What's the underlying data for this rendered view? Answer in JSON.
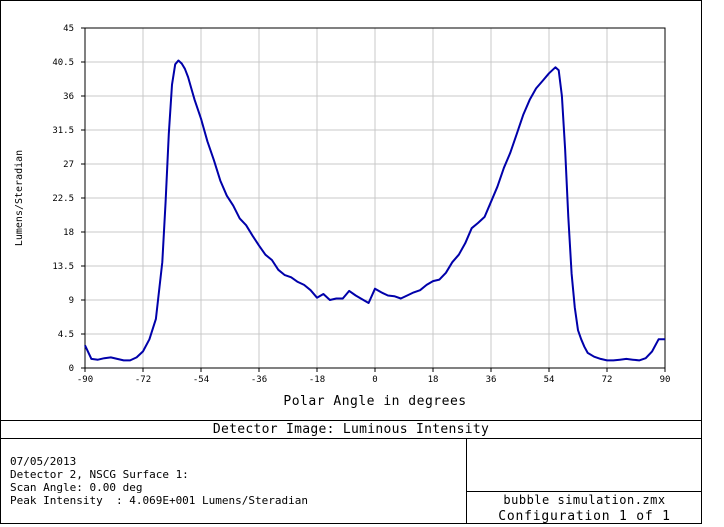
{
  "chart_data": {
    "type": "line",
    "title": "Detector Image: Luminous Intensity",
    "xlabel": "Polar Angle in degrees",
    "ylabel": "Lumens/Steradian",
    "xlim": [
      -90,
      90
    ],
    "ylim": [
      0,
      45
    ],
    "xticks": [
      "-90",
      "-72",
      "-54",
      "-36",
      "-18",
      "0",
      "18",
      "36",
      "54",
      "72",
      "90"
    ],
    "yticks": [
      "0",
      "4.5",
      "9",
      "13.5",
      "18",
      "22.5",
      "27",
      "31.5",
      "36",
      "40.5",
      "45"
    ],
    "grid": true,
    "line_color": "#0000aa",
    "series": [
      {
        "x": [
          -90,
          -88,
          -86,
          -84,
          -82,
          -80,
          -78,
          -76,
          -74,
          -72,
          -70,
          -68,
          -66,
          -65,
          -64,
          -63,
          -62,
          -61,
          -60,
          -59,
          -58,
          -57,
          -56,
          -54,
          -52,
          -50,
          -48,
          -46,
          -44,
          -42,
          -40,
          -38,
          -36,
          -34,
          -32,
          -30,
          -28,
          -26,
          -24,
          -22,
          -20,
          -18,
          -16,
          -14,
          -12,
          -10,
          -8,
          -6,
          -4,
          -2,
          0,
          2,
          4,
          6,
          8,
          10,
          12,
          14,
          16,
          18,
          20,
          22,
          24,
          26,
          28,
          30,
          32,
          34,
          36,
          38,
          40,
          42,
          44,
          46,
          48,
          50,
          52,
          54,
          56,
          57,
          58,
          59,
          60,
          61,
          62,
          63,
          64,
          65,
          66,
          68,
          70,
          72,
          74,
          76,
          78,
          80,
          82,
          84,
          86,
          88,
          90
        ],
        "y": [
          3.0,
          1.2,
          1.1,
          1.3,
          1.4,
          1.2,
          1.0,
          1.0,
          1.4,
          2.2,
          3.8,
          6.5,
          14.0,
          22.0,
          31.0,
          37.5,
          40.2,
          40.7,
          40.3,
          39.6,
          38.5,
          37.0,
          35.5,
          33.0,
          30.0,
          27.5,
          24.8,
          22.8,
          21.5,
          19.8,
          18.9,
          17.5,
          16.2,
          15.0,
          14.3,
          13.0,
          12.3,
          12.0,
          11.4,
          11.0,
          10.3,
          9.3,
          9.8,
          9.0,
          9.2,
          9.2,
          10.2,
          9.6,
          9.1,
          8.6,
          10.5,
          10.0,
          9.6,
          9.5,
          9.2,
          9.6,
          10.0,
          10.3,
          11.0,
          11.5,
          11.7,
          12.6,
          14.0,
          15.0,
          16.5,
          18.5,
          19.2,
          20.0,
          22.0,
          24.0,
          26.5,
          28.5,
          31.0,
          33.5,
          35.5,
          37.0,
          38.0,
          39.0,
          39.8,
          39.4,
          36.0,
          29.0,
          20.0,
          12.5,
          8.0,
          5.0,
          3.8,
          2.8,
          2.0,
          1.5,
          1.2,
          1.0,
          1.0,
          1.1,
          1.2,
          1.1,
          1.0,
          1.3,
          2.2,
          3.8,
          3.8
        ]
      }
    ]
  },
  "footer": {
    "date": "07/05/2013",
    "detector_line": "Detector 2, NSCG Surface 1:",
    "scan_angle_line": "Scan Angle: 0.00 deg",
    "peak_line": "Peak Intensity  : 4.069E+001 Lumens/Steradian",
    "filename": "bubble simulation.zmx",
    "configuration": "Configuration 1 of 1"
  }
}
